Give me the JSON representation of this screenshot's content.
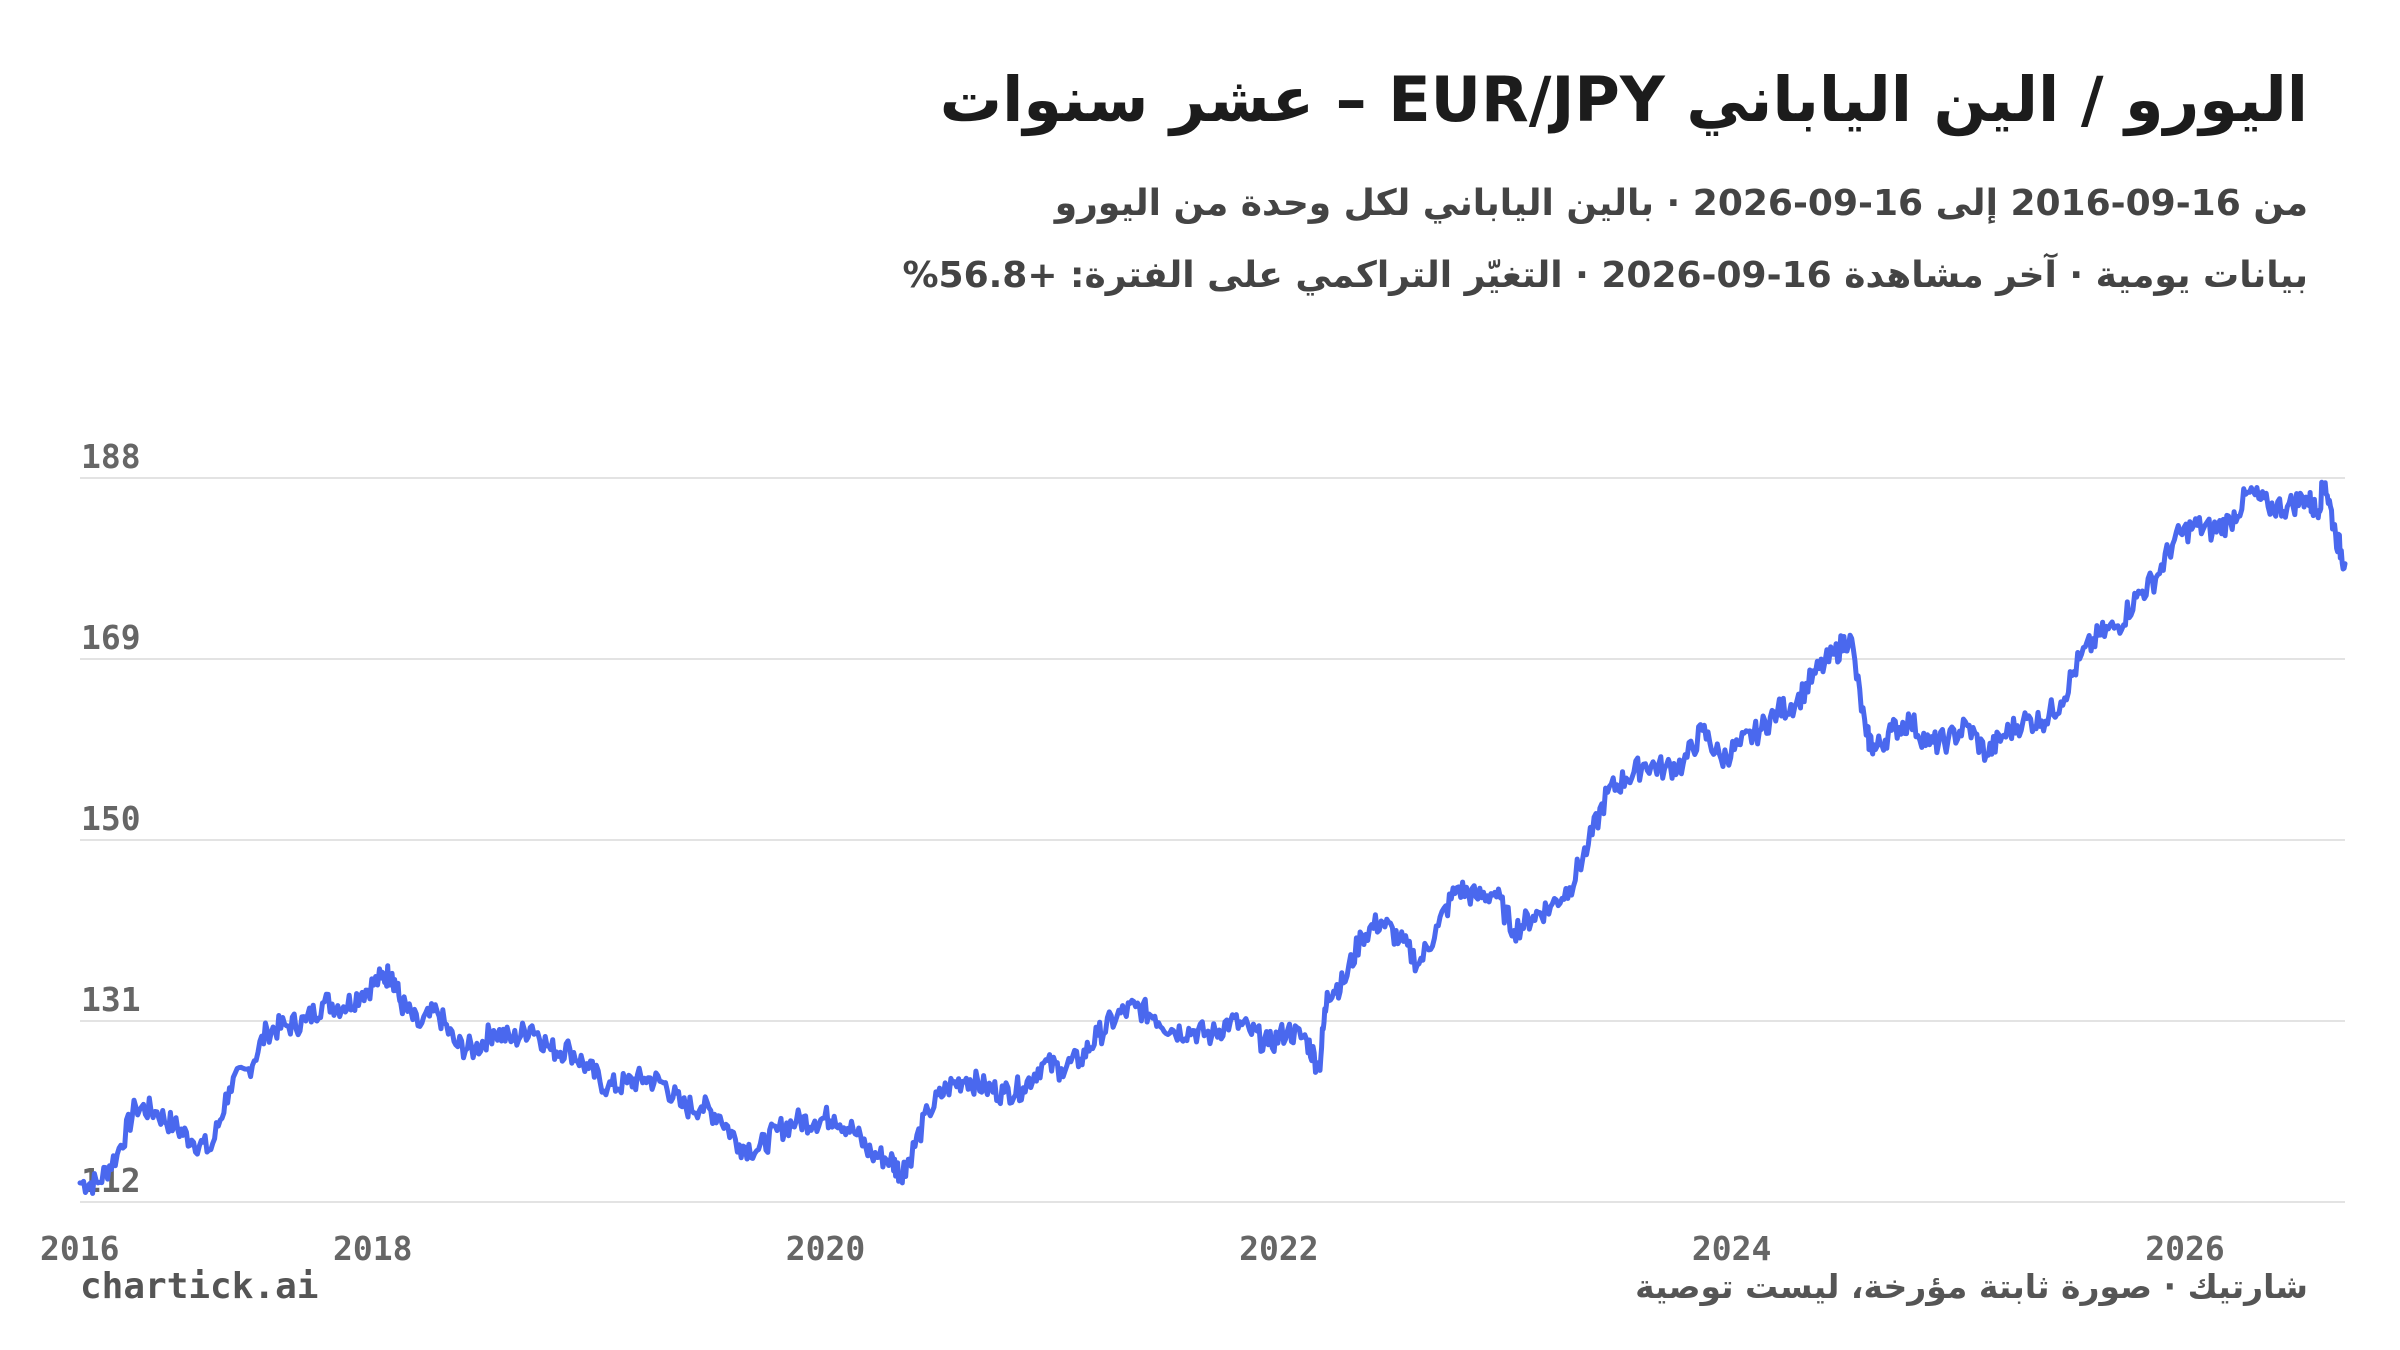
{
  "header": {
    "title": "اليورو / الين الياباني EUR/JPY – عشر سنوات",
    "subtitle_line1": "من 16-09-2016 إلى 16-09-2026 · بالين الياباني لكل وحدة من اليورو",
    "subtitle_line2": "بيانات يومية · آخر مشاهدة 16-09-2026 · التغيّر التراكمي على الفترة: +56.8%"
  },
  "footer": {
    "brand": "chartick.ai",
    "note": "شارتيك · صورة ثابتة مؤرخة، ليست توصية"
  },
  "colors": {
    "line": "#4a68ee",
    "grid": "#e3e3e3",
    "text": "#222222",
    "muted": "#666666"
  },
  "chart_data": {
    "type": "line",
    "title": "اليورو / الين الياباني EUR/JPY – عشر سنوات",
    "xlabel": "",
    "ylabel": "",
    "x_ticks": [
      "2016",
      "2018",
      "2020",
      "2022",
      "2024",
      "2026"
    ],
    "y_ticks": [
      "112",
      "131",
      "150",
      "169",
      "188"
    ],
    "xlim": [
      "2016-09-16",
      "2026-09-16"
    ],
    "ylim": [
      112,
      188
    ],
    "grid": "horizontal",
    "legend": "none",
    "series": [
      {
        "x": [
          "2016-09-16",
          "2016-10-15",
          "2016-11-15",
          "2016-12-15",
          "2017-01-15",
          "2017-02-15",
          "2017-03-15",
          "2017-04-15",
          "2017-05-15",
          "2017-06-15",
          "2017-07-15",
          "2017-08-15",
          "2017-09-15",
          "2017-10-15",
          "2017-11-15",
          "2017-12-15",
          "2018-01-15",
          "2018-02-01",
          "2018-02-15",
          "2018-03-15",
          "2018-04-15",
          "2018-05-15",
          "2018-06-15",
          "2018-07-15",
          "2018-08-15",
          "2018-09-15",
          "2018-10-15",
          "2018-11-15",
          "2018-12-15",
          "2019-01-15",
          "2019-02-15",
          "2019-03-15",
          "2019-04-15",
          "2019-05-15",
          "2019-06-15",
          "2019-07-15",
          "2019-08-15",
          "2019-09-15",
          "2019-10-15",
          "2019-11-15",
          "2019-12-15",
          "2020-01-15",
          "2020-02-15",
          "2020-03-15",
          "2020-04-15",
          "2020-05-01",
          "2020-05-15",
          "2020-06-15",
          "2020-07-15",
          "2020-08-15",
          "2020-09-15",
          "2020-10-15",
          "2020-11-15",
          "2020-12-15",
          "2021-01-15",
          "2021-02-15",
          "2021-03-15",
          "2021-04-15",
          "2021-05-15",
          "2021-06-15",
          "2021-07-15",
          "2021-08-15",
          "2021-09-15",
          "2021-10-15",
          "2021-11-15",
          "2021-12-15",
          "2022-01-15",
          "2022-02-15",
          "2022-03-07",
          "2022-03-20",
          "2022-04-15",
          "2022-05-15",
          "2022-06-15",
          "2022-07-15",
          "2022-08-15",
          "2022-09-15",
          "2022-10-15",
          "2022-11-15",
          "2022-12-15",
          "2023-01-15",
          "2023-02-15",
          "2023-03-15",
          "2023-04-15",
          "2023-05-15",
          "2023-06-15",
          "2023-07-15",
          "2023-08-15",
          "2023-09-15",
          "2023-10-15",
          "2023-11-15",
          "2023-12-15",
          "2024-01-15",
          "2024-02-15",
          "2024-03-15",
          "2024-04-15",
          "2024-05-15",
          "2024-06-15",
          "2024-07-10",
          "2024-08-05",
          "2024-08-20",
          "2024-09-15",
          "2024-10-15",
          "2024-11-15",
          "2024-12-15",
          "2025-01-15",
          "2025-02-15",
          "2025-03-15",
          "2025-04-15",
          "2025-05-15",
          "2025-06-15",
          "2025-07-15",
          "2025-08-15",
          "2025-09-15",
          "2025-10-15",
          "2025-11-15",
          "2025-12-15",
          "2026-01-15",
          "2026-02-15",
          "2026-03-15",
          "2026-04-15",
          "2026-05-15",
          "2026-06-15",
          "2026-07-15",
          "2026-08-01",
          "2026-08-15",
          "2026-09-01",
          "2026-09-16"
        ],
        "values": [
          114.0,
          114.0,
          117.0,
          122.0,
          121.5,
          120.0,
          118.5,
          117.5,
          124.0,
          126.0,
          130.0,
          130.5,
          131.0,
          133.0,
          132.5,
          134.0,
          135.5,
          136.0,
          133.0,
          130.5,
          132.0,
          128.5,
          128.0,
          130.0,
          129.0,
          130.5,
          128.0,
          128.0,
          126.0,
          124.0,
          124.5,
          125.0,
          124.5,
          122.0,
          122.0,
          121.0,
          118.0,
          117.5,
          119.5,
          120.5,
          120.5,
          121.0,
          119.5,
          117.0,
          116.5,
          115.0,
          116.5,
          121.5,
          124.0,
          125.0,
          124.0,
          123.5,
          124.0,
          126.5,
          126.0,
          127.0,
          129.5,
          131.5,
          132.5,
          131.5,
          130.0,
          130.0,
          129.5,
          131.0,
          130.0,
          128.5,
          130.0,
          129.0,
          126.0,
          134.0,
          135.0,
          140.0,
          141.5,
          139.5,
          137.0,
          141.0,
          145.0,
          144.0,
          144.5,
          140.5,
          142.0,
          143.0,
          145.0,
          149.5,
          155.0,
          156.5,
          158.0,
          157.5,
          158.0,
          161.5,
          158.5,
          160.0,
          161.5,
          163.5,
          164.5,
          167.5,
          169.5,
          171.5,
          161.0,
          159.5,
          161.5,
          162.5,
          160.0,
          160.5,
          162.0,
          159.0,
          161.0,
          162.5,
          162.5,
          164.5,
          169.0,
          171.5,
          172.5,
          175.5,
          177.5,
          181.5,
          183.0,
          182.5,
          183.5,
          186.5,
          185.0,
          185.0,
          186.0,
          184.5,
          187.5,
          182.0,
          179.0
        ]
      }
    ]
  }
}
